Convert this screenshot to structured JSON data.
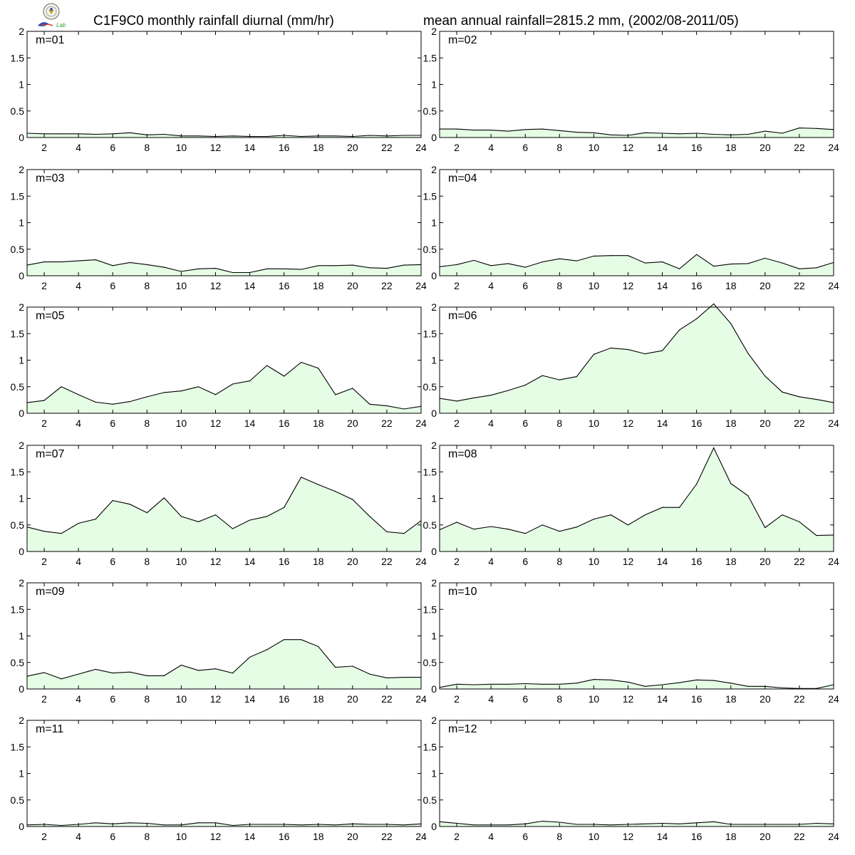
{
  "header": {
    "title_left": "C1F9C0 monthly rainfall diurnal (mm/hr)",
    "title_right": "mean annual rainfall=2815.2 mm, (2002/08-2011/05)"
  },
  "logo": {
    "icon": "lab-emblem-logo",
    "text": "Lab"
  },
  "style": {
    "fill": "#e5fce5",
    "line": "#000000",
    "frame": "#000000"
  },
  "chart_data": [
    {
      "type": "area",
      "label": "m=01",
      "x": [
        1,
        2,
        3,
        4,
        5,
        6,
        7,
        8,
        9,
        10,
        11,
        12,
        13,
        14,
        15,
        16,
        17,
        18,
        19,
        20,
        21,
        22,
        23,
        24
      ],
      "values": [
        0.08,
        0.07,
        0.07,
        0.07,
        0.06,
        0.07,
        0.09,
        0.05,
        0.06,
        0.03,
        0.03,
        0.02,
        0.03,
        0.02,
        0.02,
        0.04,
        0.02,
        0.03,
        0.03,
        0.02,
        0.04,
        0.03,
        0.04,
        0.04
      ],
      "x_ticks": [
        2,
        4,
        6,
        8,
        10,
        12,
        14,
        16,
        18,
        20,
        22,
        24
      ],
      "y_ticks": [
        0,
        0.5,
        1,
        1.5,
        2
      ],
      "xlim": [
        1,
        24
      ],
      "ylim": [
        0,
        2
      ]
    },
    {
      "type": "area",
      "label": "m=02",
      "x": [
        1,
        2,
        3,
        4,
        5,
        6,
        7,
        8,
        9,
        10,
        11,
        12,
        13,
        14,
        15,
        16,
        17,
        18,
        19,
        20,
        21,
        22,
        23,
        24
      ],
      "values": [
        0.16,
        0.16,
        0.14,
        0.14,
        0.12,
        0.15,
        0.16,
        0.13,
        0.1,
        0.09,
        0.05,
        0.04,
        0.09,
        0.08,
        0.07,
        0.08,
        0.06,
        0.05,
        0.06,
        0.12,
        0.08,
        0.18,
        0.17,
        0.15
      ],
      "x_ticks": [
        2,
        4,
        6,
        8,
        10,
        12,
        14,
        16,
        18,
        20,
        22,
        24
      ],
      "y_ticks": [
        0,
        0.5,
        1,
        1.5,
        2
      ],
      "xlim": [
        1,
        24
      ],
      "ylim": [
        0,
        2
      ]
    },
    {
      "type": "area",
      "label": "m=03",
      "x": [
        1,
        2,
        3,
        4,
        5,
        6,
        7,
        8,
        9,
        10,
        11,
        12,
        13,
        14,
        15,
        16,
        17,
        18,
        19,
        20,
        21,
        22,
        23,
        24
      ],
      "values": [
        0.2,
        0.26,
        0.26,
        0.28,
        0.3,
        0.19,
        0.25,
        0.21,
        0.16,
        0.08,
        0.13,
        0.14,
        0.06,
        0.06,
        0.13,
        0.13,
        0.12,
        0.19,
        0.19,
        0.2,
        0.15,
        0.14,
        0.2,
        0.21
      ],
      "x_ticks": [
        2,
        4,
        6,
        8,
        10,
        12,
        14,
        16,
        18,
        20,
        22,
        24
      ],
      "y_ticks": [
        0,
        0.5,
        1,
        1.5,
        2
      ],
      "xlim": [
        1,
        24
      ],
      "ylim": [
        0,
        2
      ]
    },
    {
      "type": "area",
      "label": "m=04",
      "x": [
        1,
        2,
        3,
        4,
        5,
        6,
        7,
        8,
        9,
        10,
        11,
        12,
        13,
        14,
        15,
        16,
        17,
        18,
        19,
        20,
        21,
        22,
        23,
        24
      ],
      "values": [
        0.17,
        0.21,
        0.29,
        0.19,
        0.23,
        0.16,
        0.26,
        0.32,
        0.28,
        0.37,
        0.38,
        0.38,
        0.24,
        0.26,
        0.13,
        0.4,
        0.18,
        0.22,
        0.23,
        0.33,
        0.24,
        0.13,
        0.15,
        0.25
      ],
      "x_ticks": [
        2,
        4,
        6,
        8,
        10,
        12,
        14,
        16,
        18,
        20,
        22,
        24
      ],
      "y_ticks": [
        0,
        0.5,
        1,
        1.5,
        2
      ],
      "xlim": [
        1,
        24
      ],
      "ylim": [
        0,
        2
      ]
    },
    {
      "type": "area",
      "label": "m=05",
      "x": [
        1,
        2,
        3,
        4,
        5,
        6,
        7,
        8,
        9,
        10,
        11,
        12,
        13,
        14,
        15,
        16,
        17,
        18,
        19,
        20,
        21,
        22,
        23,
        24
      ],
      "values": [
        0.2,
        0.24,
        0.5,
        0.35,
        0.21,
        0.17,
        0.22,
        0.31,
        0.39,
        0.42,
        0.5,
        0.35,
        0.55,
        0.61,
        0.9,
        0.7,
        0.96,
        0.85,
        0.35,
        0.47,
        0.17,
        0.14,
        0.08,
        0.13
      ],
      "x_ticks": [
        2,
        4,
        6,
        8,
        10,
        12,
        14,
        16,
        18,
        20,
        22,
        24
      ],
      "y_ticks": [
        0,
        0.5,
        1,
        1.5,
        2
      ],
      "xlim": [
        1,
        24
      ],
      "ylim": [
        0,
        2
      ]
    },
    {
      "type": "area",
      "label": "m=06",
      "x": [
        1,
        2,
        3,
        4,
        5,
        6,
        7,
        8,
        9,
        10,
        11,
        12,
        13,
        14,
        15,
        16,
        17,
        18,
        19,
        20,
        21,
        22,
        23,
        24
      ],
      "values": [
        0.28,
        0.23,
        0.29,
        0.34,
        0.43,
        0.53,
        0.71,
        0.63,
        0.69,
        1.11,
        1.23,
        1.2,
        1.12,
        1.18,
        1.57,
        1.78,
        2.06,
        1.69,
        1.13,
        0.7,
        0.4,
        0.31,
        0.26,
        0.2
      ],
      "x_ticks": [
        2,
        4,
        6,
        8,
        10,
        12,
        14,
        16,
        18,
        20,
        22,
        24
      ],
      "y_ticks": [
        0,
        0.5,
        1,
        1.5,
        2
      ],
      "xlim": [
        1,
        24
      ],
      "ylim": [
        0,
        2
      ]
    },
    {
      "type": "area",
      "label": "m=07",
      "x": [
        1,
        2,
        3,
        4,
        5,
        6,
        7,
        8,
        9,
        10,
        11,
        12,
        13,
        14,
        15,
        16,
        17,
        18,
        19,
        20,
        21,
        22,
        23,
        24
      ],
      "values": [
        0.46,
        0.38,
        0.34,
        0.53,
        0.61,
        0.96,
        0.89,
        0.73,
        1.01,
        0.66,
        0.56,
        0.69,
        0.43,
        0.59,
        0.66,
        0.83,
        1.4,
        1.26,
        1.13,
        0.98,
        0.66,
        0.37,
        0.34,
        0.58
      ],
      "x_ticks": [
        2,
        4,
        6,
        8,
        10,
        12,
        14,
        16,
        18,
        20,
        22,
        24
      ],
      "y_ticks": [
        0,
        0.5,
        1,
        1.5,
        2
      ],
      "xlim": [
        1,
        24
      ],
      "ylim": [
        0,
        2
      ]
    },
    {
      "type": "area",
      "label": "m=08",
      "x": [
        1,
        2,
        3,
        4,
        5,
        6,
        7,
        8,
        9,
        10,
        11,
        12,
        13,
        14,
        15,
        16,
        17,
        18,
        19,
        20,
        21,
        22,
        23,
        24
      ],
      "values": [
        0.41,
        0.55,
        0.42,
        0.47,
        0.42,
        0.34,
        0.5,
        0.38,
        0.46,
        0.61,
        0.69,
        0.5,
        0.69,
        0.83,
        0.83,
        1.27,
        1.95,
        1.28,
        1.05,
        0.45,
        0.69,
        0.56,
        0.3,
        0.31
      ],
      "x_ticks": [
        2,
        4,
        6,
        8,
        10,
        12,
        14,
        16,
        18,
        20,
        22,
        24
      ],
      "y_ticks": [
        0,
        0.5,
        1,
        1.5,
        2
      ],
      "xlim": [
        1,
        24
      ],
      "ylim": [
        0,
        2
      ]
    },
    {
      "type": "area",
      "label": "m=09",
      "x": [
        1,
        2,
        3,
        4,
        5,
        6,
        7,
        8,
        9,
        10,
        11,
        12,
        13,
        14,
        15,
        16,
        17,
        18,
        19,
        20,
        21,
        22,
        23,
        24
      ],
      "values": [
        0.24,
        0.31,
        0.19,
        0.28,
        0.37,
        0.3,
        0.32,
        0.25,
        0.25,
        0.45,
        0.35,
        0.38,
        0.3,
        0.6,
        0.74,
        0.93,
        0.93,
        0.8,
        0.41,
        0.43,
        0.28,
        0.21,
        0.22,
        0.22
      ],
      "x_ticks": [
        2,
        4,
        6,
        8,
        10,
        12,
        14,
        16,
        18,
        20,
        22,
        24
      ],
      "y_ticks": [
        0,
        0.5,
        1,
        1.5,
        2
      ],
      "xlim": [
        1,
        24
      ],
      "ylim": [
        0,
        2
      ]
    },
    {
      "type": "area",
      "label": "m=10",
      "x": [
        1,
        2,
        3,
        4,
        5,
        6,
        7,
        8,
        9,
        10,
        11,
        12,
        13,
        14,
        15,
        16,
        17,
        18,
        19,
        20,
        21,
        22,
        23,
        24
      ],
      "values": [
        0.03,
        0.09,
        0.08,
        0.09,
        0.09,
        0.1,
        0.09,
        0.09,
        0.11,
        0.18,
        0.17,
        0.13,
        0.05,
        0.08,
        0.12,
        0.17,
        0.16,
        0.11,
        0.05,
        0.05,
        0.02,
        0.01,
        0.01,
        0.08
      ],
      "x_ticks": [
        2,
        4,
        6,
        8,
        10,
        12,
        14,
        16,
        18,
        20,
        22,
        24
      ],
      "y_ticks": [
        0,
        0.5,
        1,
        1.5,
        2
      ],
      "xlim": [
        1,
        24
      ],
      "ylim": [
        0,
        2
      ]
    },
    {
      "type": "area",
      "label": "m=11",
      "x": [
        1,
        2,
        3,
        4,
        5,
        6,
        7,
        8,
        9,
        10,
        11,
        12,
        13,
        14,
        15,
        16,
        17,
        18,
        19,
        20,
        21,
        22,
        23,
        24
      ],
      "values": [
        0.03,
        0.04,
        0.02,
        0.04,
        0.07,
        0.05,
        0.07,
        0.06,
        0.03,
        0.03,
        0.07,
        0.07,
        0.02,
        0.04,
        0.04,
        0.04,
        0.03,
        0.04,
        0.03,
        0.05,
        0.04,
        0.04,
        0.03,
        0.05
      ],
      "x_ticks": [
        2,
        4,
        6,
        8,
        10,
        12,
        14,
        16,
        18,
        20,
        22,
        24
      ],
      "y_ticks": [
        0,
        0.5,
        1,
        1.5,
        2
      ],
      "xlim": [
        1,
        24
      ],
      "ylim": [
        0,
        2
      ]
    },
    {
      "type": "area",
      "label": "m=12",
      "x": [
        1,
        2,
        3,
        4,
        5,
        6,
        7,
        8,
        9,
        10,
        11,
        12,
        13,
        14,
        15,
        16,
        17,
        18,
        19,
        20,
        21,
        22,
        23,
        24
      ],
      "values": [
        0.09,
        0.06,
        0.03,
        0.03,
        0.03,
        0.05,
        0.1,
        0.08,
        0.04,
        0.04,
        0.03,
        0.04,
        0.05,
        0.06,
        0.05,
        0.07,
        0.09,
        0.04,
        0.04,
        0.04,
        0.04,
        0.04,
        0.06,
        0.05
      ],
      "x_ticks": [
        2,
        4,
        6,
        8,
        10,
        12,
        14,
        16,
        18,
        20,
        22,
        24
      ],
      "y_ticks": [
        0,
        0.5,
        1,
        1.5,
        2
      ],
      "xlim": [
        1,
        24
      ],
      "ylim": [
        0,
        2
      ]
    }
  ]
}
